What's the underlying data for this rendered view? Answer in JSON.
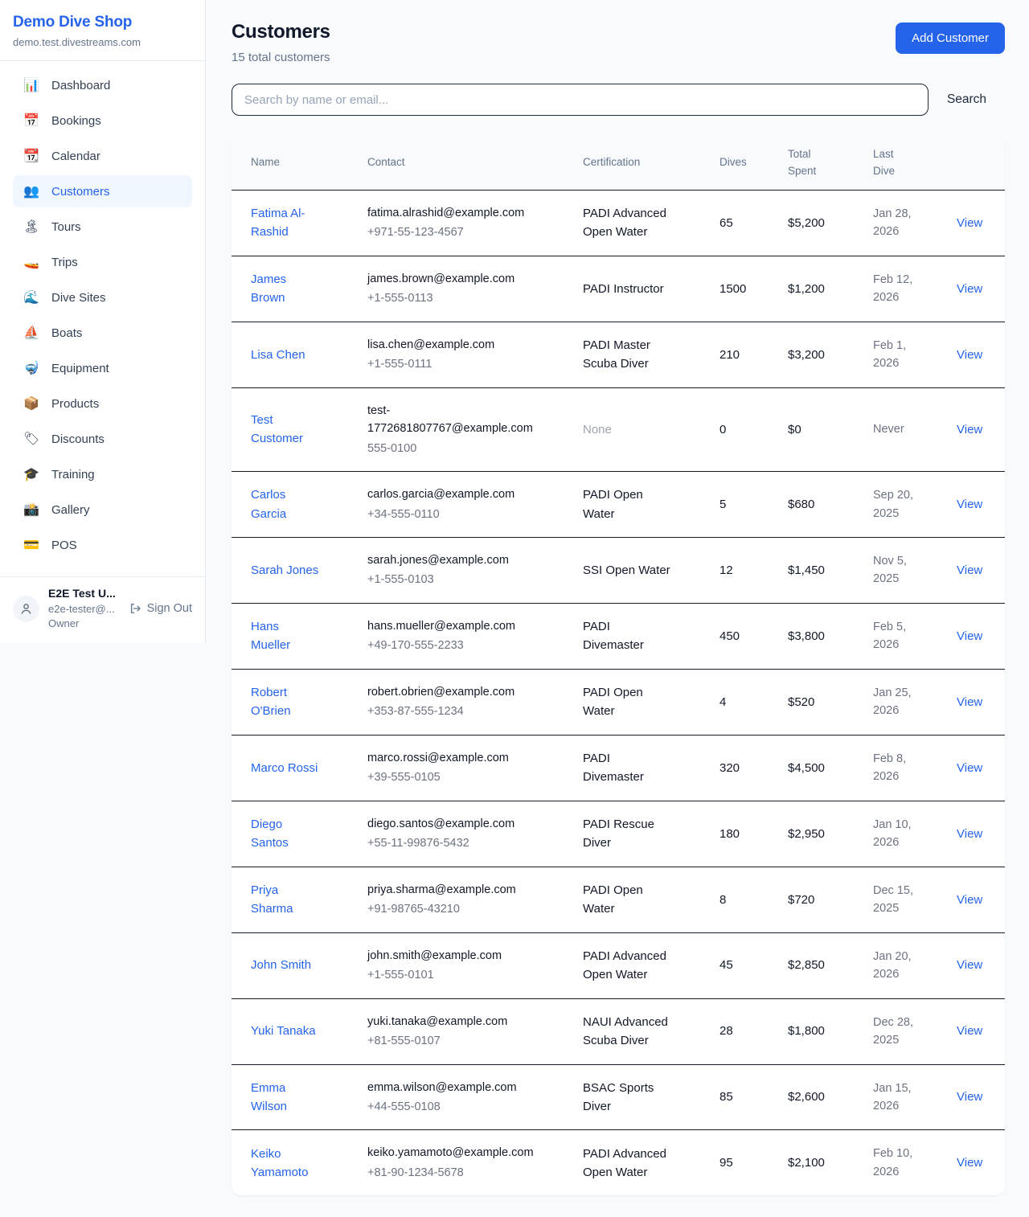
{
  "sidebar": {
    "brand": {
      "title": "Demo Dive Shop",
      "domain": "demo.test.divestreams.com"
    },
    "nav": [
      {
        "name": "dashboard",
        "icon": "📊",
        "label": "Dashboard",
        "active": false
      },
      {
        "name": "bookings",
        "icon": "📅",
        "label": "Bookings",
        "active": false
      },
      {
        "name": "calendar",
        "icon": "📆",
        "label": "Calendar",
        "active": false
      },
      {
        "name": "customers",
        "icon": "👥",
        "label": "Customers",
        "active": true
      },
      {
        "name": "tours",
        "icon": "🏝",
        "label": "Tours",
        "active": false
      },
      {
        "name": "trips",
        "icon": "🚤",
        "label": "Trips",
        "active": false
      },
      {
        "name": "dive-sites",
        "icon": "🌊",
        "label": "Dive Sites",
        "active": false
      },
      {
        "name": "boats",
        "icon": "⛵",
        "label": "Boats",
        "active": false
      },
      {
        "name": "equipment",
        "icon": "🤿",
        "label": "Equipment",
        "active": false
      },
      {
        "name": "products",
        "icon": "📦",
        "label": "Products",
        "active": false
      },
      {
        "name": "discounts",
        "icon": "🏷",
        "label": "Discounts",
        "active": false
      },
      {
        "name": "training",
        "icon": "🎓",
        "label": "Training",
        "active": false
      },
      {
        "name": "gallery",
        "icon": "📸",
        "label": "Gallery",
        "active": false
      },
      {
        "name": "pos",
        "icon": "💳",
        "label": "POS",
        "active": false
      }
    ],
    "user": {
      "name": "E2E Test U...",
      "email": "e2e-tester@...",
      "role": "Owner",
      "sign_out": "Sign Out"
    }
  },
  "header": {
    "title": "Customers",
    "subtitle": "15 total customers",
    "add_button": "Add Customer"
  },
  "search": {
    "placeholder": "Search by name or email...",
    "button": "Search"
  },
  "table": {
    "columns": [
      "Name",
      "Contact",
      "Certification",
      "Dives",
      "Total Spent",
      "Last Dive",
      ""
    ],
    "rows": [
      {
        "name": "Fatima Al-Rashid",
        "email": "fatima.alrashid@example.com",
        "phone": "+971-55-123-4567",
        "certification": "PADI Advanced Open Water",
        "dives": "65",
        "total_spent": "$5,200",
        "last_dive": "Jan 28, 2026",
        "action": "View"
      },
      {
        "name": "James Brown",
        "email": "james.brown@example.com",
        "phone": "+1-555-0113",
        "certification": "PADI Instructor",
        "dives": "1500",
        "total_spent": "$1,200",
        "last_dive": "Feb 12, 2026",
        "action": "View"
      },
      {
        "name": "Lisa Chen",
        "email": "lisa.chen@example.com",
        "phone": "+1-555-0111",
        "certification": "PADI Master Scuba Diver",
        "dives": "210",
        "total_spent": "$3,200",
        "last_dive": "Feb 1, 2026",
        "action": "View"
      },
      {
        "name": "Test Customer",
        "email": "test-1772681807767@example.com",
        "phone": "555-0100",
        "certification": "None",
        "dives": "0",
        "total_spent": "$0",
        "last_dive": "Never",
        "action": "View"
      },
      {
        "name": "Carlos Garcia",
        "email": "carlos.garcia@example.com",
        "phone": "+34-555-0110",
        "certification": "PADI Open Water",
        "dives": "5",
        "total_spent": "$680",
        "last_dive": "Sep 20, 2025",
        "action": "View"
      },
      {
        "name": "Sarah Jones",
        "email": "sarah.jones@example.com",
        "phone": "+1-555-0103",
        "certification": "SSI Open Water",
        "dives": "12",
        "total_spent": "$1,450",
        "last_dive": "Nov 5, 2025",
        "action": "View"
      },
      {
        "name": "Hans Mueller",
        "email": "hans.mueller@example.com",
        "phone": "+49-170-555-2233",
        "certification": "PADI Divemaster",
        "dives": "450",
        "total_spent": "$3,800",
        "last_dive": "Feb 5, 2026",
        "action": "View"
      },
      {
        "name": "Robert O'Brien",
        "email": "robert.obrien@example.com",
        "phone": "+353-87-555-1234",
        "certification": "PADI Open Water",
        "dives": "4",
        "total_spent": "$520",
        "last_dive": "Jan 25, 2026",
        "action": "View"
      },
      {
        "name": "Marco Rossi",
        "email": "marco.rossi@example.com",
        "phone": "+39-555-0105",
        "certification": "PADI Divemaster",
        "dives": "320",
        "total_spent": "$4,500",
        "last_dive": "Feb 8, 2026",
        "action": "View"
      },
      {
        "name": "Diego Santos",
        "email": "diego.santos@example.com",
        "phone": "+55-11-99876-5432",
        "certification": "PADI Rescue Diver",
        "dives": "180",
        "total_spent": "$2,950",
        "last_dive": "Jan 10, 2026",
        "action": "View"
      },
      {
        "name": "Priya Sharma",
        "email": "priya.sharma@example.com",
        "phone": "+91-98765-43210",
        "certification": "PADI Open Water",
        "dives": "8",
        "total_spent": "$720",
        "last_dive": "Dec 15, 2025",
        "action": "View"
      },
      {
        "name": "John Smith",
        "email": "john.smith@example.com",
        "phone": "+1-555-0101",
        "certification": "PADI Advanced Open Water",
        "dives": "45",
        "total_spent": "$2,850",
        "last_dive": "Jan 20, 2026",
        "action": "View"
      },
      {
        "name": "Yuki Tanaka",
        "email": "yuki.tanaka@example.com",
        "phone": "+81-555-0107",
        "certification": "NAUI Advanced Scuba Diver",
        "dives": "28",
        "total_spent": "$1,800",
        "last_dive": "Dec 28, 2025",
        "action": "View"
      },
      {
        "name": "Emma Wilson",
        "email": "emma.wilson@example.com",
        "phone": "+44-555-0108",
        "certification": "BSAC Sports Diver",
        "dives": "85",
        "total_spent": "$2,600",
        "last_dive": "Jan 15, 2026",
        "action": "View"
      },
      {
        "name": "Keiko Yamamoto",
        "email": "keiko.yamamoto@example.com",
        "phone": "+81-90-1234-5678",
        "certification": "PADI Advanced Open Water",
        "dives": "95",
        "total_spent": "$2,100",
        "last_dive": "Feb 10, 2026",
        "action": "View"
      }
    ]
  },
  "colors": {
    "accent": "#2563eb",
    "accent_light": "#eff6ff",
    "page_background": "#f8fafc",
    "text_dark": "#0f172a",
    "text_gray": "#6b7280",
    "text_muted": "#9ca3af",
    "row_border": "#151c2c"
  }
}
